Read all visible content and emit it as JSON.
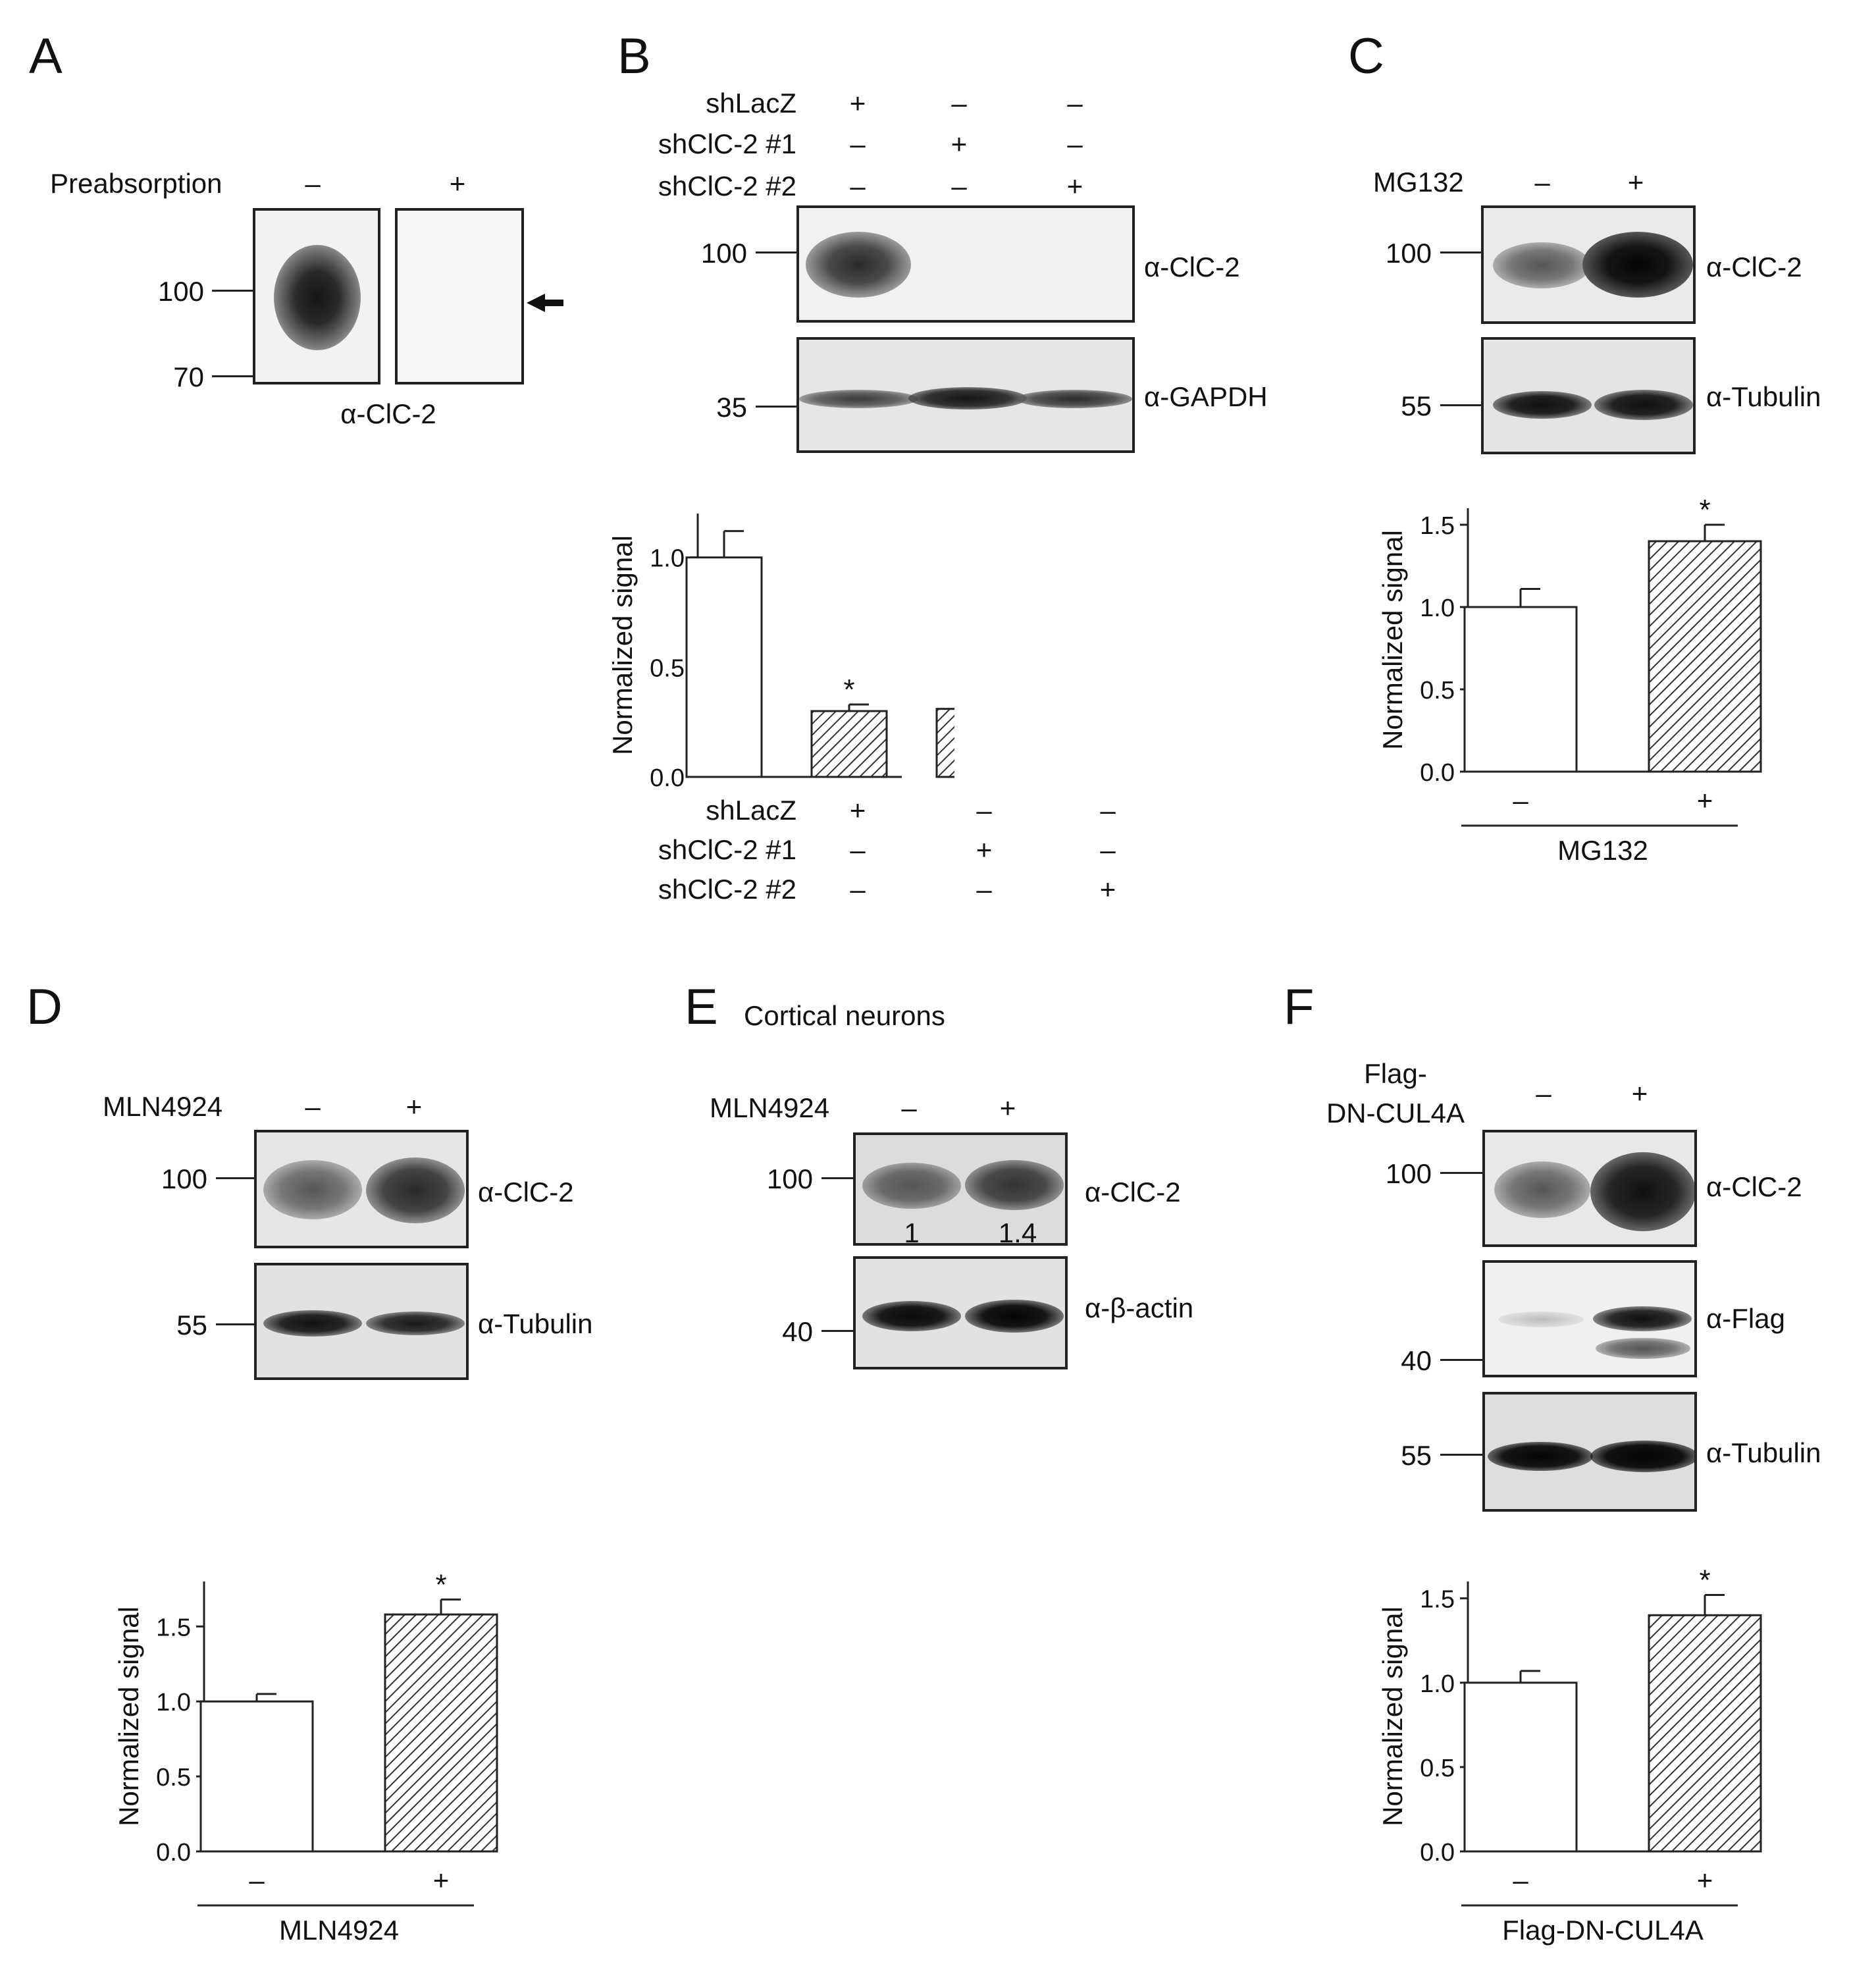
{
  "panels": {
    "A": {
      "letter": "A",
      "treatment_label": "Preabsorption",
      "lanes": [
        "–",
        "+"
      ],
      "markers": [
        "100",
        "70"
      ],
      "antibody": "α-ClC-2"
    },
    "B": {
      "letter": "B",
      "rows": [
        {
          "label": "shLacZ",
          "signs": [
            "+",
            "–",
            "–"
          ]
        },
        {
          "label": "shClC-2 #1",
          "signs": [
            "–",
            "+",
            "–"
          ]
        },
        {
          "label": "shClC-2 #2",
          "signs": [
            "–",
            "–",
            "+"
          ]
        }
      ],
      "blots": [
        {
          "antibody": "α-ClC-2",
          "marker": "100"
        },
        {
          "antibody": "α-GAPDH",
          "marker": "35"
        }
      ]
    },
    "C": {
      "letter": "C",
      "treatment_label": "MG132",
      "lanes": [
        "–",
        "+"
      ],
      "blots": [
        {
          "antibody": "α-ClC-2",
          "marker": "100"
        },
        {
          "antibody": "α-Tubulin",
          "marker": "55"
        }
      ]
    },
    "D": {
      "letter": "D",
      "treatment_label": "MLN4924",
      "lanes": [
        "–",
        "+"
      ],
      "blots": [
        {
          "antibody": "α-ClC-2",
          "marker": "100"
        },
        {
          "antibody": "α-Tubulin",
          "marker": "55"
        }
      ]
    },
    "E": {
      "letter": "E",
      "title": "Cortical neurons",
      "treatment_label": "MLN4924",
      "lanes": [
        "–",
        "+"
      ],
      "quant": [
        "1",
        "1.4"
      ],
      "blots": [
        {
          "antibody": "α-ClC-2",
          "marker": "100"
        },
        {
          "antibody": "α-β-actin",
          "marker": "40"
        }
      ]
    },
    "F": {
      "letter": "F",
      "treatment_label_line1": "Flag-",
      "treatment_label_line2": "DN-CUL4A",
      "lanes": [
        "–",
        "+"
      ],
      "blots": [
        {
          "antibody": "α-ClC-2",
          "marker": "100"
        },
        {
          "antibody": "α-Flag",
          "marker": "40"
        },
        {
          "antibody": "α-Tubulin",
          "marker": "55"
        }
      ]
    }
  },
  "chart_data": [
    {
      "id": "B",
      "type": "bar",
      "ylabel": "Normalized signal",
      "ylim": [
        0,
        1.2
      ],
      "yticks": [
        "0.0",
        "0.5",
        "1.0"
      ],
      "categories": [
        "shLacZ",
        "shClC-2 #1",
        "shClC-2 #2"
      ],
      "values": [
        1.0,
        0.3,
        0.31
      ],
      "errors": [
        0.12,
        0.03,
        0.05
      ],
      "significance": [
        "",
        "*",
        "*"
      ],
      "fill": [
        "white",
        "hatched",
        "hatched"
      ],
      "x_rows": [
        {
          "label": "shLacZ",
          "signs": [
            "+",
            "–",
            "–"
          ]
        },
        {
          "label": "shClC-2 #1",
          "signs": [
            "–",
            "+",
            "–"
          ]
        },
        {
          "label": "shClC-2 #2",
          "signs": [
            "–",
            "–",
            "+"
          ]
        }
      ]
    },
    {
      "id": "C",
      "type": "bar",
      "ylabel": "Normalized signal",
      "ylim": [
        0,
        1.6
      ],
      "yticks": [
        "0.0",
        "0.5",
        "1.0",
        "1.5"
      ],
      "categories": [
        "–",
        "+"
      ],
      "values": [
        1.0,
        1.4
      ],
      "errors": [
        0.11,
        0.1
      ],
      "significance": [
        "",
        "*"
      ],
      "fill": [
        "white",
        "hatched"
      ],
      "xgroup_label": "MG132"
    },
    {
      "id": "D",
      "type": "bar",
      "ylabel": "Normalized signal",
      "ylim": [
        0,
        1.8
      ],
      "yticks": [
        "0.0",
        "0.5",
        "1.0",
        "1.5"
      ],
      "categories": [
        "–",
        "+"
      ],
      "values": [
        1.0,
        1.58
      ],
      "errors": [
        0.05,
        0.1
      ],
      "significance": [
        "",
        "*"
      ],
      "fill": [
        "white",
        "hatched"
      ],
      "xgroup_label": "MLN4924"
    },
    {
      "id": "F",
      "type": "bar",
      "ylabel": "Normalized signal",
      "ylim": [
        0,
        1.6
      ],
      "yticks": [
        "0.0",
        "0.5",
        "1.0",
        "1.5"
      ],
      "categories": [
        "–",
        "+"
      ],
      "values": [
        1.0,
        1.4
      ],
      "errors": [
        0.07,
        0.12
      ],
      "significance": [
        "",
        "*"
      ],
      "fill": [
        "white",
        "hatched"
      ],
      "xgroup_label": "Flag-DN-CUL4A"
    }
  ]
}
